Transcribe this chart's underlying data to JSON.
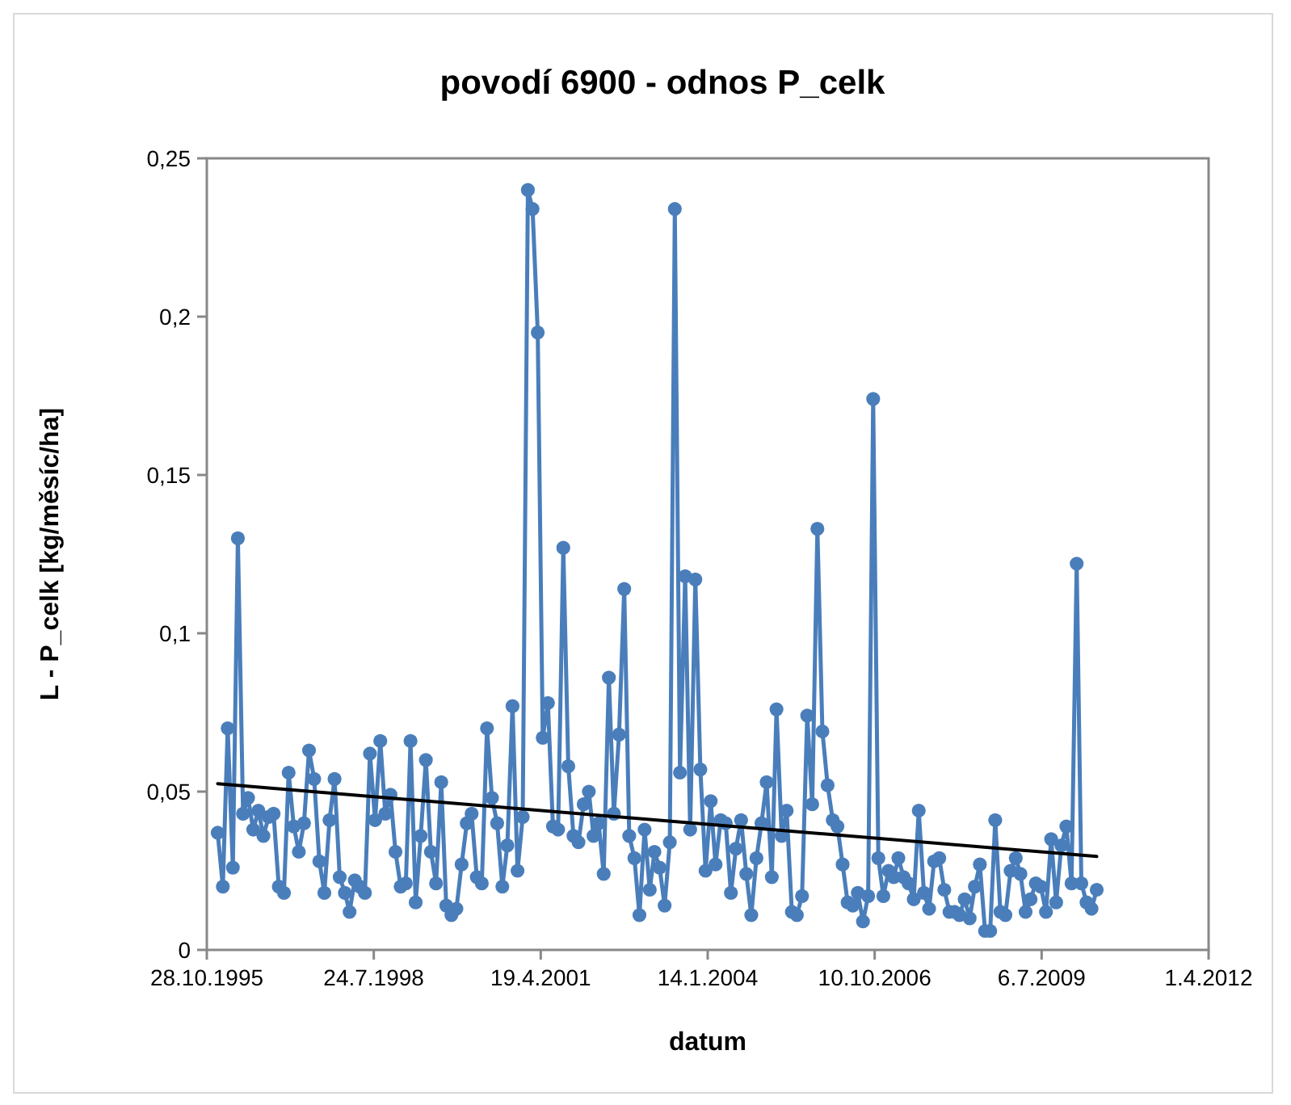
{
  "chart_data": {
    "type": "line",
    "title": "povodí 6900 - odnos P_celk",
    "xlabel": "datum",
    "ylabel": "L - P_celk [kg/měsíc/ha]",
    "xlim": [
      "1995-10-28",
      "2012-04-01"
    ],
    "xticks": [
      {
        "value": "1995-10-28",
        "label": "28.10.1995"
      },
      {
        "value": "1998-07-24",
        "label": "24.7.1998"
      },
      {
        "value": "2001-04-19",
        "label": "19.4.2001"
      },
      {
        "value": "2004-01-14",
        "label": "14.1.2004"
      },
      {
        "value": "2006-10-10",
        "label": "10.10.2006"
      },
      {
        "value": "2009-07-06",
        "label": "6.7.2009"
      },
      {
        "value": "2012-04-01",
        "label": "1.4.2012"
      }
    ],
    "ylim": [
      0,
      0.25
    ],
    "yticks": [
      0,
      {
        "value": 0.05,
        "label": "0,05"
      },
      {
        "value": 0.1,
        "label": "0,1"
      },
      {
        "value": 0.15,
        "label": "0,15"
      },
      {
        "value": 0.2,
        "label": "0,2"
      },
      {
        "value": 0.25,
        "label": "0,25"
      }
    ],
    "marker": "circle",
    "line_style": "solid",
    "x": [
      "1996-01",
      "1996-02",
      "1996-03",
      "1996-04",
      "1996-05",
      "1996-06",
      "1996-07",
      "1996-08",
      "1996-09",
      "1996-10",
      "1996-11",
      "1996-12",
      "1997-01",
      "1997-02",
      "1997-03",
      "1997-04",
      "1997-05",
      "1997-06",
      "1997-07",
      "1997-08",
      "1997-09",
      "1997-10",
      "1997-11",
      "1997-12",
      "1998-01",
      "1998-02",
      "1998-03",
      "1998-04",
      "1998-05",
      "1998-06",
      "1998-07",
      "1998-08",
      "1998-09",
      "1998-10",
      "1998-11",
      "1998-12",
      "1999-01",
      "1999-02",
      "1999-03",
      "1999-04",
      "1999-05",
      "1999-06",
      "1999-07",
      "1999-08",
      "1999-09",
      "1999-10",
      "1999-11",
      "1999-12",
      "2000-01",
      "2000-02",
      "2000-03",
      "2000-04",
      "2000-05",
      "2000-06",
      "2000-07",
      "2000-08",
      "2000-09",
      "2000-10",
      "2000-11",
      "2000-12",
      "2001-01",
      "2001-02",
      "2001-03",
      "2001-04",
      "2001-05",
      "2001-06",
      "2001-07",
      "2001-08",
      "2001-09",
      "2001-10",
      "2001-11",
      "2001-12",
      "2002-01",
      "2002-02",
      "2002-03",
      "2002-04",
      "2002-05",
      "2002-06",
      "2002-07",
      "2002-08",
      "2002-09",
      "2002-10",
      "2002-11",
      "2002-12",
      "2003-01",
      "2003-02",
      "2003-03",
      "2003-04",
      "2003-05",
      "2003-06",
      "2003-07",
      "2003-08",
      "2003-09",
      "2003-10",
      "2003-11",
      "2003-12",
      "2004-01",
      "2004-02",
      "2004-03",
      "2004-04",
      "2004-05",
      "2004-06",
      "2004-07",
      "2004-08",
      "2004-09",
      "2004-10",
      "2004-11",
      "2004-12",
      "2005-01",
      "2005-02",
      "2005-03",
      "2005-04",
      "2005-05",
      "2005-06",
      "2005-07",
      "2005-08",
      "2005-09",
      "2005-10",
      "2005-11",
      "2005-12",
      "2006-01",
      "2006-02",
      "2006-03",
      "2006-04",
      "2006-05",
      "2006-06",
      "2006-07",
      "2006-08",
      "2006-09",
      "2006-10",
      "2006-11",
      "2006-12",
      "2007-01",
      "2007-02",
      "2007-03",
      "2007-04",
      "2007-05",
      "2007-06",
      "2007-07",
      "2007-08",
      "2007-09",
      "2007-10",
      "2007-11",
      "2007-12",
      "2008-01",
      "2008-02",
      "2008-03",
      "2008-04",
      "2008-05",
      "2008-06",
      "2008-07",
      "2008-08",
      "2008-09",
      "2008-10",
      "2008-11",
      "2008-12",
      "2009-01",
      "2009-02",
      "2009-03",
      "2009-04",
      "2009-05",
      "2009-06",
      "2009-07",
      "2009-08",
      "2009-09",
      "2009-10",
      "2009-11",
      "2009-12",
      "2010-01",
      "2010-02",
      "2010-03",
      "2010-04",
      "2010-05",
      "2010-06"
    ],
    "series": [
      {
        "color": "#4a7ebb",
        "values": [
          0.037,
          0.02,
          0.07,
          0.026,
          0.13,
          0.043,
          0.048,
          0.038,
          0.044,
          0.036,
          0.042,
          0.043,
          0.02,
          0.018,
          0.056,
          0.039,
          0.031,
          0.04,
          0.063,
          0.054,
          0.028,
          0.018,
          0.041,
          0.054,
          0.023,
          0.018,
          0.012,
          0.022,
          0.02,
          0.018,
          0.062,
          0.041,
          0.066,
          0.043,
          0.049,
          0.031,
          0.02,
          0.021,
          0.066,
          0.015,
          0.036,
          0.06,
          0.031,
          0.021,
          0.053,
          0.014,
          0.011,
          0.013,
          0.027,
          0.04,
          0.043,
          0.023,
          0.021,
          0.07,
          0.048,
          0.04,
          0.02,
          0.033,
          0.077,
          0.025,
          0.042,
          0.24,
          0.234,
          0.195,
          0.067,
          0.078,
          0.039,
          0.038,
          0.127,
          0.058,
          0.036,
          0.034,
          0.046,
          0.05,
          0.036,
          0.04,
          0.024,
          0.086,
          0.043,
          0.068,
          0.114,
          0.036,
          0.029,
          0.011,
          0.038,
          0.019,
          0.031,
          0.026,
          0.014,
          0.034,
          0.234,
          0.056,
          0.118,
          0.038,
          0.117,
          0.057,
          0.025,
          0.047,
          0.027,
          0.041,
          0.04,
          0.018,
          0.032,
          0.041,
          0.024,
          0.011,
          0.029,
          0.04,
          0.053,
          0.023,
          0.076,
          0.036,
          0.044,
          0.012,
          0.011,
          0.017,
          0.074,
          0.046,
          0.133,
          0.069,
          0.052,
          0.041,
          0.039,
          0.027,
          0.015,
          0.014,
          0.018,
          0.009,
          0.017,
          0.174,
          0.029,
          0.017,
          0.025,
          0.023,
          0.029,
          0.023,
          0.021,
          0.016,
          0.044,
          0.018,
          0.013,
          0.028,
          0.029,
          0.019,
          0.012,
          0.012,
          0.011,
          0.016,
          0.01,
          0.02,
          0.027,
          0.006,
          0.006,
          0.041,
          0.012,
          0.011,
          0.025,
          0.029,
          0.024,
          0.012,
          0.016,
          0.021,
          0.02,
          0.012,
          0.035,
          0.015,
          0.033,
          0.039,
          0.021,
          0.122,
          0.021,
          0.015,
          0.013,
          0.019
        ]
      },
      {
        "type": "line",
        "color": "#000000",
        "marker": "none",
        "x": [
          "1996-01",
          "2010-06"
        ],
        "values": [
          0.0525,
          0.0295
        ]
      }
    ]
  }
}
